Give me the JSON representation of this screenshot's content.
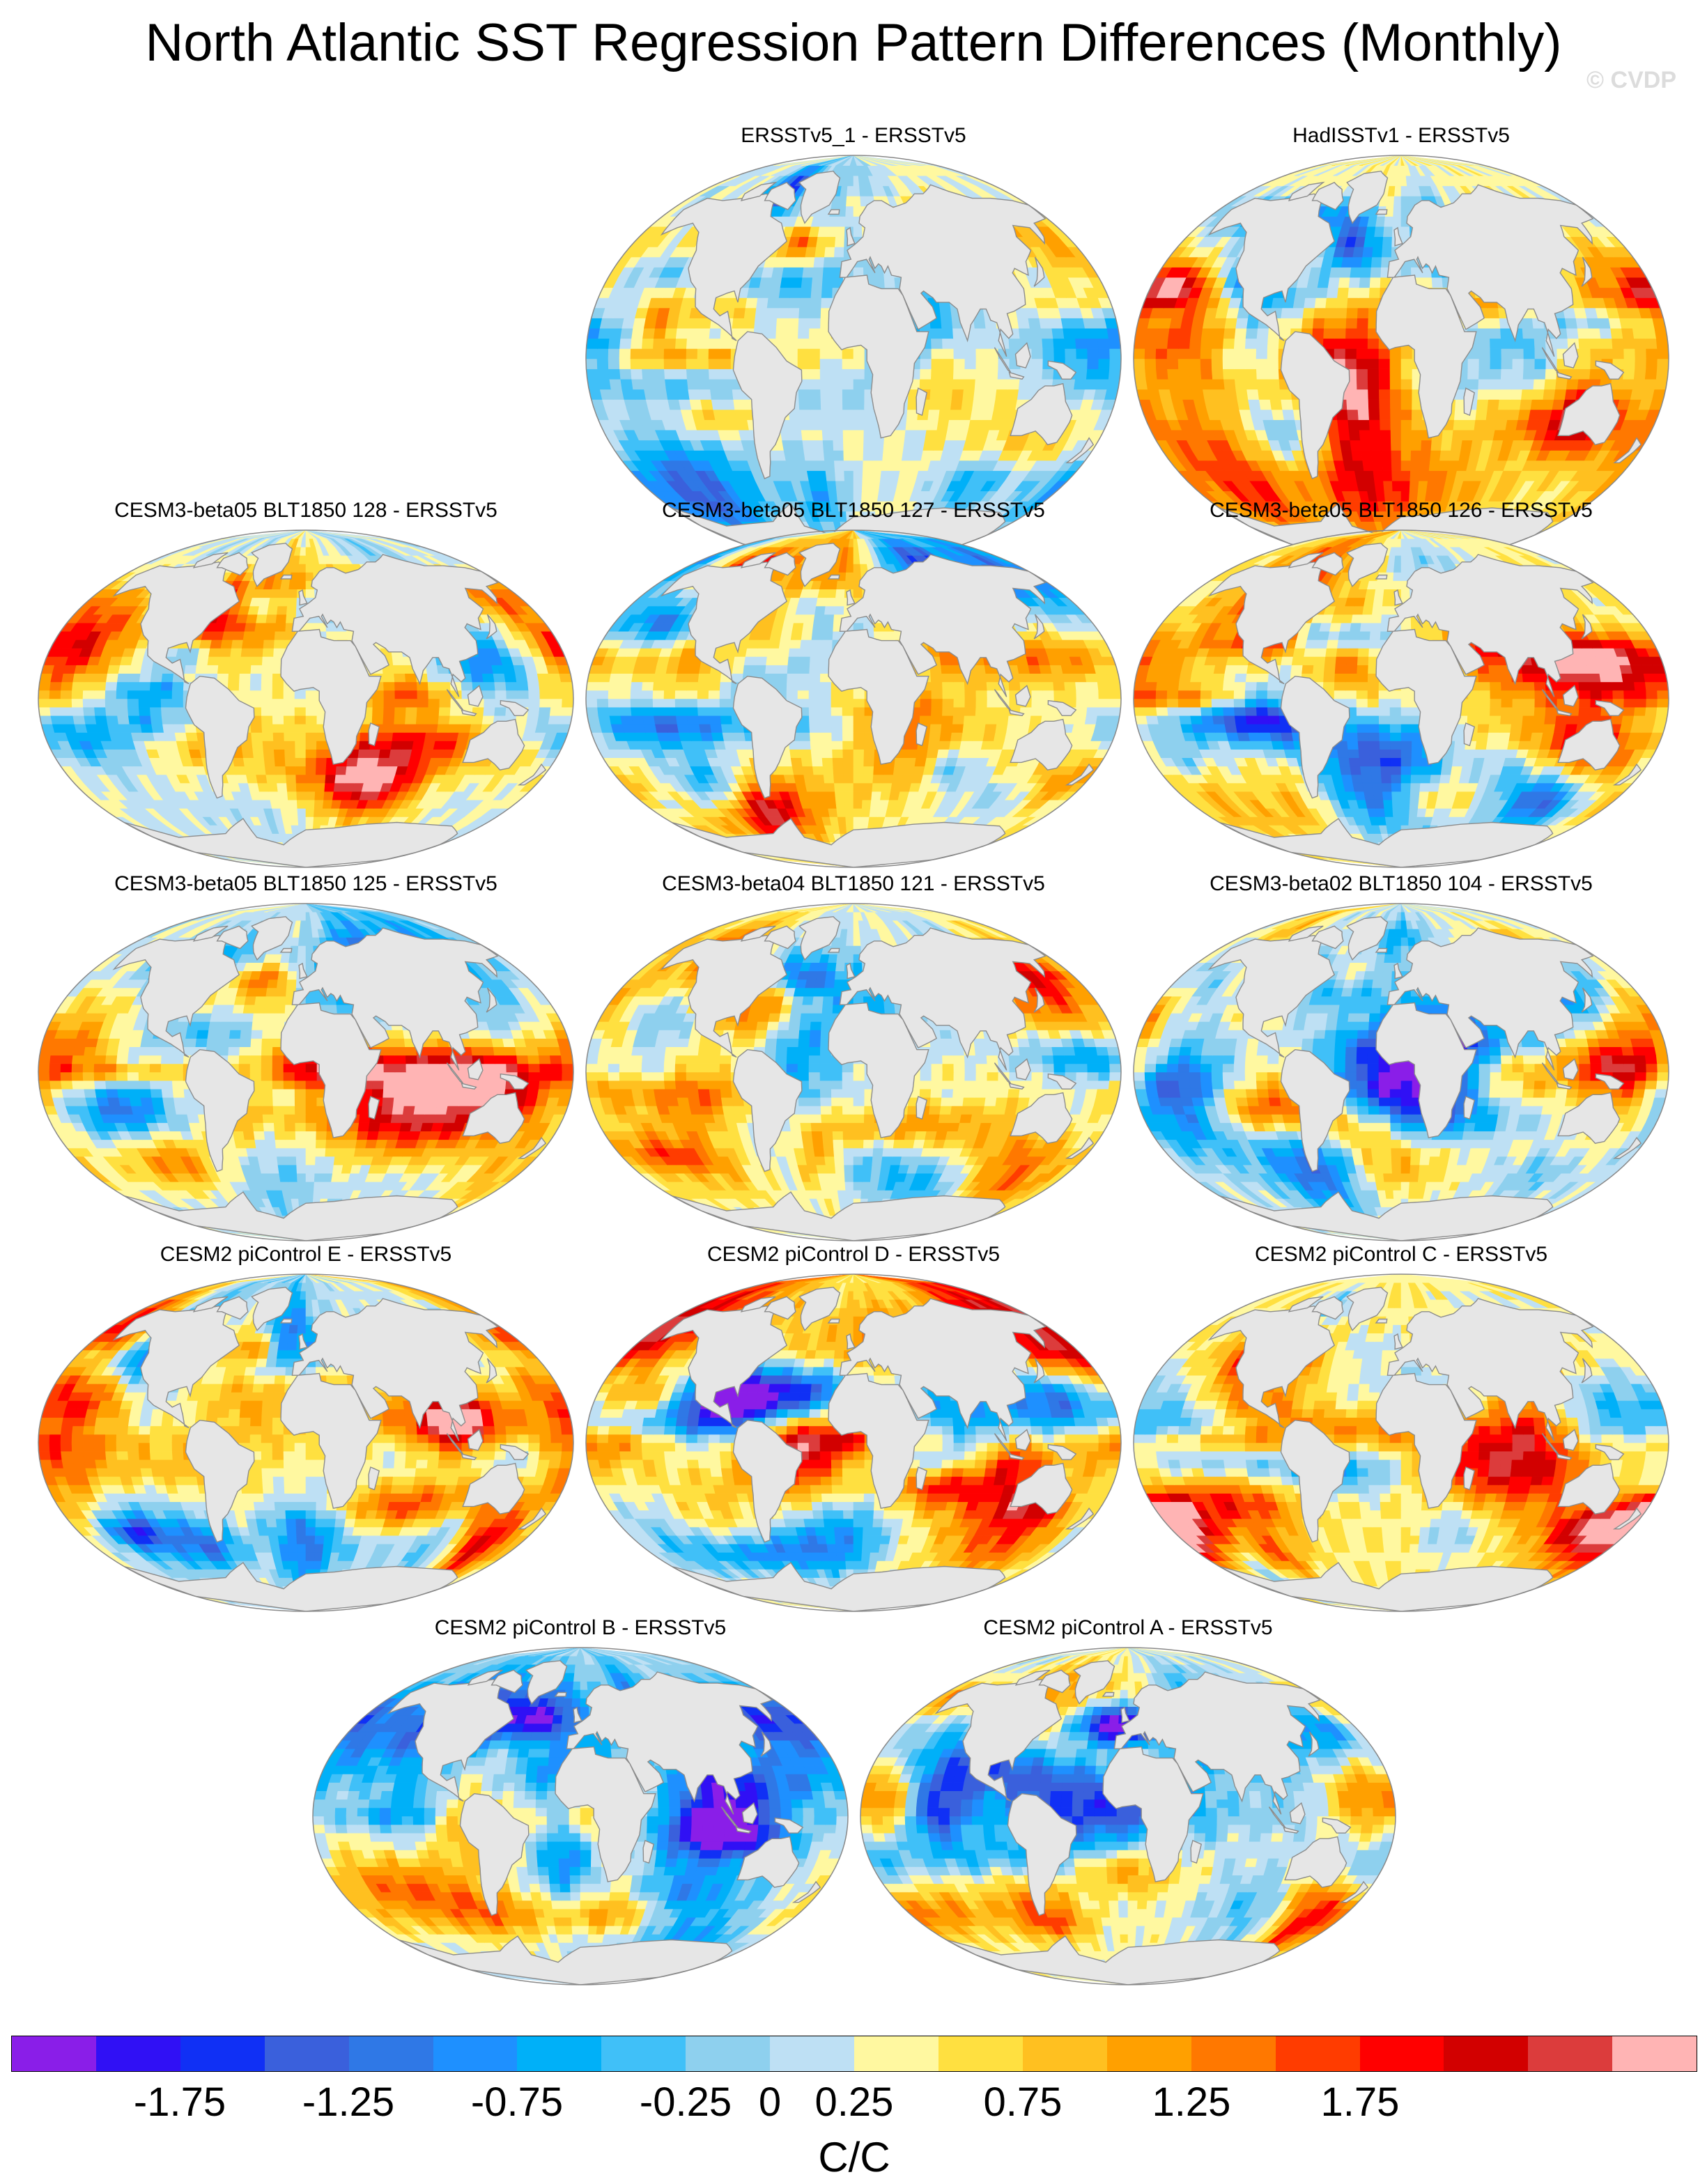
{
  "title": "North Atlantic SST Regression Pattern Differences (Monthly)",
  "credit": "© CVDP",
  "panels": [
    {
      "title": "ERSSTv5_1 - ERSSTv5",
      "seed": 11,
      "bias": 0.05
    },
    {
      "title": "HadISSTv1 - ERSSTv5",
      "seed": 23,
      "bias": 0.1
    },
    {
      "title": "CESM3-beta05 BLT1850 128 - ERSSTv5",
      "seed": 37,
      "bias": 0.0
    },
    {
      "title": "CESM3-beta05 BLT1850 127 - ERSSTv5",
      "seed": 41,
      "bias": 0.15
    },
    {
      "title": "CESM3-beta05 BLT1850 126 - ERSSTv5",
      "seed": 53,
      "bias": 0.1
    },
    {
      "title": "CESM3-beta05 BLT1850 125 - ERSSTv5",
      "seed": 61,
      "bias": -0.1
    },
    {
      "title": "CESM3-beta04 BLT1850 121 - ERSSTv5",
      "seed": 73,
      "bias": 0.0
    },
    {
      "title": "CESM3-beta02 BLT1850 104 - ERSSTv5",
      "seed": 89,
      "bias": -0.05
    },
    {
      "title": "CESM2 piControl E - ERSSTv5",
      "seed": 97,
      "bias": -0.05
    },
    {
      "title": "CESM2 piControl D - ERSSTv5",
      "seed": 103,
      "bias": 0.1
    },
    {
      "title": "CESM2 piControl C - ERSSTv5",
      "seed": 113,
      "bias": 0.15
    },
    {
      "title": "CESM2 piControl B - ERSSTv5",
      "seed": 127,
      "bias": -0.1
    },
    {
      "title": "CESM2 piControl A - ERSSTv5",
      "seed": 131,
      "bias": 0.05
    }
  ],
  "colorbar": {
    "colors": [
      "#8a1ee8",
      "#3010f5",
      "#1030f5",
      "#3a60dc",
      "#2f78e6",
      "#1e90ff",
      "#00b0f8",
      "#40c0f8",
      "#8ed0ee",
      "#bee0f4",
      "#fff8a0",
      "#ffe040",
      "#ffc020",
      "#ffa000",
      "#ff7800",
      "#ff3c00",
      "#ff0000",
      "#d20000",
      "#dc3c3c",
      "#ffb4b4"
    ],
    "levels": [
      "-2",
      "-1.75",
      "-1.5",
      "-1.25",
      "-1",
      "-0.75",
      "-0.5",
      "-0.25",
      "0",
      "0.25",
      "0.5",
      "0.75",
      "1",
      "1.25",
      "1.5",
      "1.75",
      "2"
    ],
    "labels": [
      "-1.75",
      "-1.25",
      "-0.75",
      "-0.25",
      "0",
      "0.25",
      "0.75",
      "1.25",
      "1.75"
    ],
    "units": "C/C"
  },
  "land_color": "#e6e6e6",
  "coast_color": "#8c8c8c"
}
